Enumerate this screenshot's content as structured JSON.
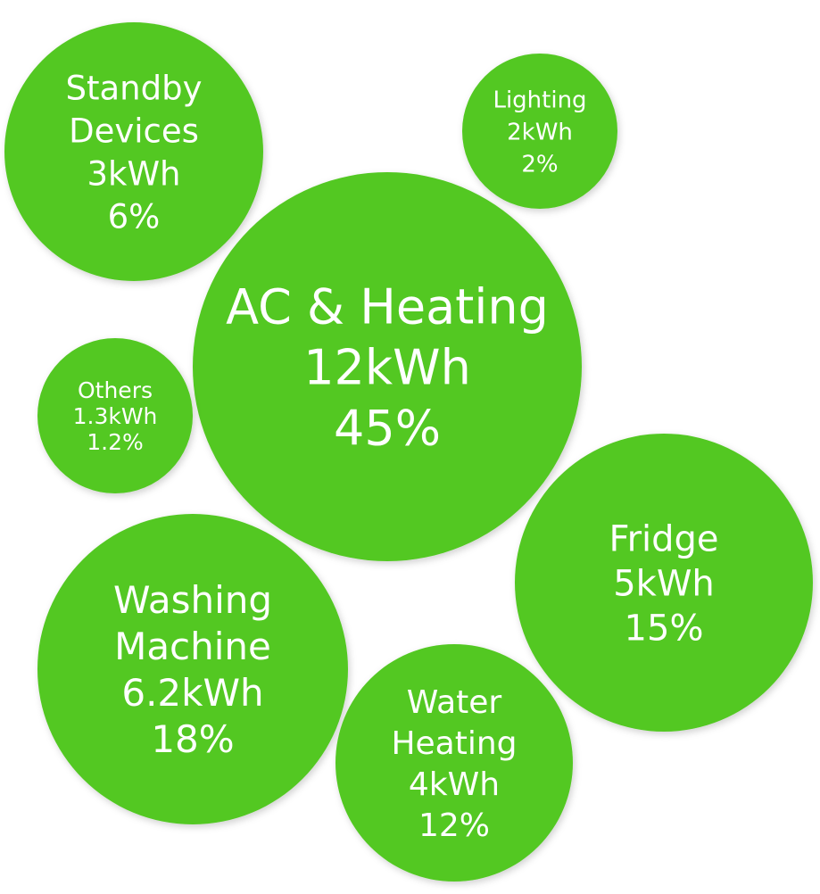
{
  "chart_data": {
    "type": "bubble",
    "unit": "kWh",
    "bubble_color": "#52c823",
    "label_color": "#ffffff",
    "series": [
      {
        "id": "ac-heating",
        "lines": [
          "AC & Heating"
        ],
        "value_label": "12kWh",
        "percent_label": "45%",
        "value": 12,
        "percent": 45
      },
      {
        "id": "standby-devices",
        "lines": [
          "Standby",
          "Devices"
        ],
        "value_label": "3kWh",
        "percent_label": "6%",
        "value": 3,
        "percent": 6
      },
      {
        "id": "lighting",
        "lines": [
          "Lighting"
        ],
        "value_label": "2kWh",
        "percent_label": "2%",
        "value": 2,
        "percent": 2
      },
      {
        "id": "others",
        "lines": [
          "Others"
        ],
        "value_label": "1.3kWh",
        "percent_label": "1.2%",
        "value": 1.3,
        "percent": 1.2
      },
      {
        "id": "fridge",
        "lines": [
          "Fridge"
        ],
        "value_label": "5kWh",
        "percent_label": "15%",
        "value": 5,
        "percent": 15
      },
      {
        "id": "washing-machine",
        "lines": [
          "Washing",
          "Machine"
        ],
        "value_label": "6.2kWh",
        "percent_label": "18%",
        "value": 6.2,
        "percent": 18
      },
      {
        "id": "water-heating",
        "lines": [
          "Water",
          "Heating"
        ],
        "value_label": "4kWh",
        "percent_label": "12%",
        "value": 4,
        "percent": 12
      }
    ]
  }
}
